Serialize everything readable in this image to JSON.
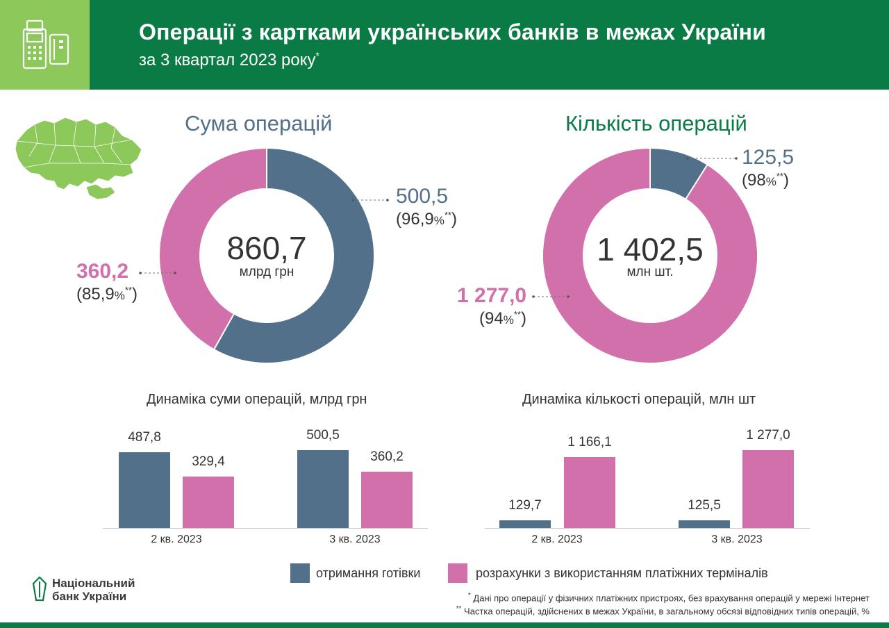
{
  "header": {
    "title": "Операції з картками українських банків в межах України",
    "subtitle": "за 3 квартал 2023 року",
    "subtitle_mark": "*",
    "icon": "pos-terminal-and-card-icon",
    "colors": {
      "header_bg": "#0a7b45",
      "icon_bg": "#8dc85b"
    }
  },
  "map": {
    "icon": "ukraine-map-icon",
    "color": "#8dc85b"
  },
  "sum": {
    "title": "Сума операцій",
    "total": "860,7",
    "unit": "млрд грн",
    "cash": {
      "value": "500,5",
      "pct": "96,9",
      "pct_sign": "%",
      "mark": "**"
    },
    "terminals": {
      "value": "360,2",
      "pct": "85,9",
      "pct_sign": "%",
      "mark": "**"
    }
  },
  "count": {
    "title": "Кількість операцій",
    "total": "1 402,5",
    "unit": "млн шт.",
    "cash": {
      "value": "125,5",
      "pct": "98",
      "pct_sign": "%",
      "mark": "**"
    },
    "terminals": {
      "value": "1 277,0",
      "pct": "94",
      "pct_sign": "%",
      "mark": "**"
    }
  },
  "bar_charts": {
    "sum_title": "Динаміка суми операцій, млрд грн",
    "count_title": "Динаміка кількості операцій, млн шт",
    "sum_bars": {
      "q2_cash": "487,8",
      "q2_term": "329,4",
      "q3_cash": "500,5",
      "q3_term": "360,2"
    },
    "count_bars": {
      "q2_cash": "129,7",
      "q2_term": "1 166,1",
      "q3_cash": "125,5",
      "q3_term": "1 277,0"
    },
    "categories": [
      "2 кв. 2023",
      "3 кв. 2023"
    ]
  },
  "legend": {
    "cash": "отримання готівки",
    "terminals": "розрахунки з використанням платіжних терміналів"
  },
  "logo": {
    "line1": "Національний",
    "line2": "банк України",
    "icon": "nbu-logo-icon"
  },
  "footnotes": {
    "note1_mark": "*",
    "note1": "Дані про операції у фізичних платіжних пристроях, без врахування операцій у мережі Інтернет",
    "note2_mark": "**",
    "note2": "Частка операцій, здійснених в межах України, в загальному обсязі відповідних типів операцій, %"
  },
  "colors": {
    "cash": "#53708a",
    "terminals": "#d270ac",
    "brand_green": "#0a7b45"
  },
  "chart_data": [
    {
      "type": "pie",
      "title": "Сума операцій",
      "unit": "млрд грн",
      "total": 860.7,
      "labels": [
        "отримання готівки",
        "розрахунки з використанням платіжних терміналів"
      ],
      "values": [
        500.5,
        360.2
      ],
      "share_pct": [
        96.9,
        85.9
      ]
    },
    {
      "type": "pie",
      "title": "Кількість операцій",
      "unit": "млн шт.",
      "total": 1402.5,
      "labels": [
        "отримання готівки",
        "розрахунки з використанням платіжних терміналів"
      ],
      "values": [
        125.5,
        1277.0
      ],
      "share_pct": [
        98,
        94
      ]
    },
    {
      "type": "bar",
      "title": "Динаміка суми операцій, млрд грн",
      "categories": [
        "2 кв. 2023",
        "3 кв. 2023"
      ],
      "series": [
        {
          "name": "отримання готівки",
          "values": [
            487.8,
            500.5
          ]
        },
        {
          "name": "розрахунки з використанням платіжних терміналів",
          "values": [
            329.4,
            360.2
          ]
        }
      ]
    },
    {
      "type": "bar",
      "title": "Динаміка кількості операцій, млн шт",
      "categories": [
        "2 кв. 2023",
        "3 кв. 2023"
      ],
      "series": [
        {
          "name": "отримання готівки",
          "values": [
            129.7,
            125.5
          ]
        },
        {
          "name": "розрахунки з використанням платіжних терміналів",
          "values": [
            1166.1,
            1277.0
          ]
        }
      ]
    }
  ]
}
